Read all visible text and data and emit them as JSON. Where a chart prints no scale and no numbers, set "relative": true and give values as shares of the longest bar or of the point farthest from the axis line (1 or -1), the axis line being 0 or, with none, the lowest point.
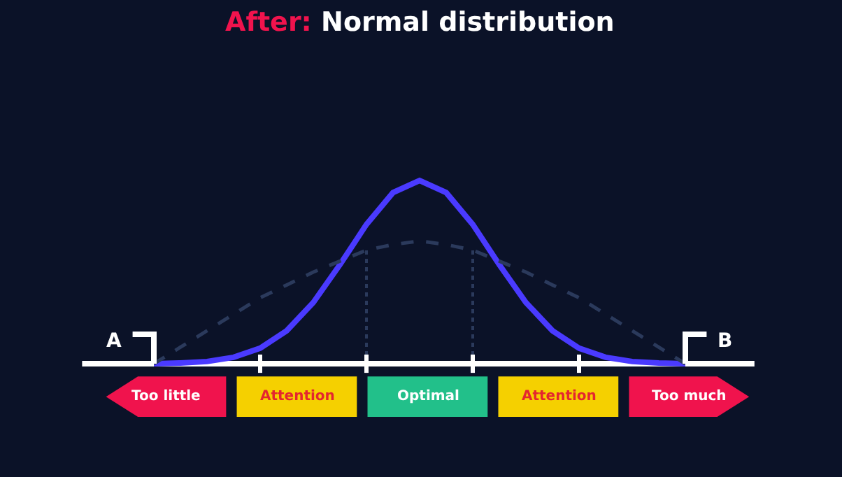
{
  "chart_data": [
    {
      "type": "line",
      "relative": true,
      "title": "After: Normal distribution",
      "categories": [
        null,
        null,
        null,
        null,
        null,
        null,
        null,
        null,
        null,
        null,
        null,
        null,
        null,
        null,
        null,
        null,
        null,
        null,
        null,
        null,
        null
      ],
      "marker": "none",
      "series": [
        {
          "color": "#4a3aff",
          "line_style": "solid",
          "values": [
            0,
            0.004,
            0.012,
            0.035,
            0.085,
            0.18,
            0.334,
            0.54,
            0.76,
            0.934,
            1,
            0.934,
            0.76,
            0.54,
            0.334,
            0.18,
            0.085,
            0.035,
            0.012,
            0.004,
            0
          ]
        },
        {
          "color": "#2b3a5c",
          "line_style": "dashed",
          "values": [
            0,
            0.09,
            0.18,
            0.27,
            0.36,
            0.43,
            0.5,
            0.56,
            0.62,
            0.65,
            0.67,
            0.65,
            0.62,
            0.56,
            0.5,
            0.43,
            0.36,
            0.27,
            0.18,
            0.09,
            0
          ]
        }
      ],
      "annotations": [
        "A",
        "B"
      ]
    },
    {
      "type": "other",
      "categories": [
        "Too little",
        "Attention",
        "Optimal",
        "Attention",
        "Too much"
      ],
      "colors": [
        "#f0134d",
        "#f5d000",
        "#22c08a",
        "#f5d000",
        "#f0134d"
      ]
    }
  ]
}
